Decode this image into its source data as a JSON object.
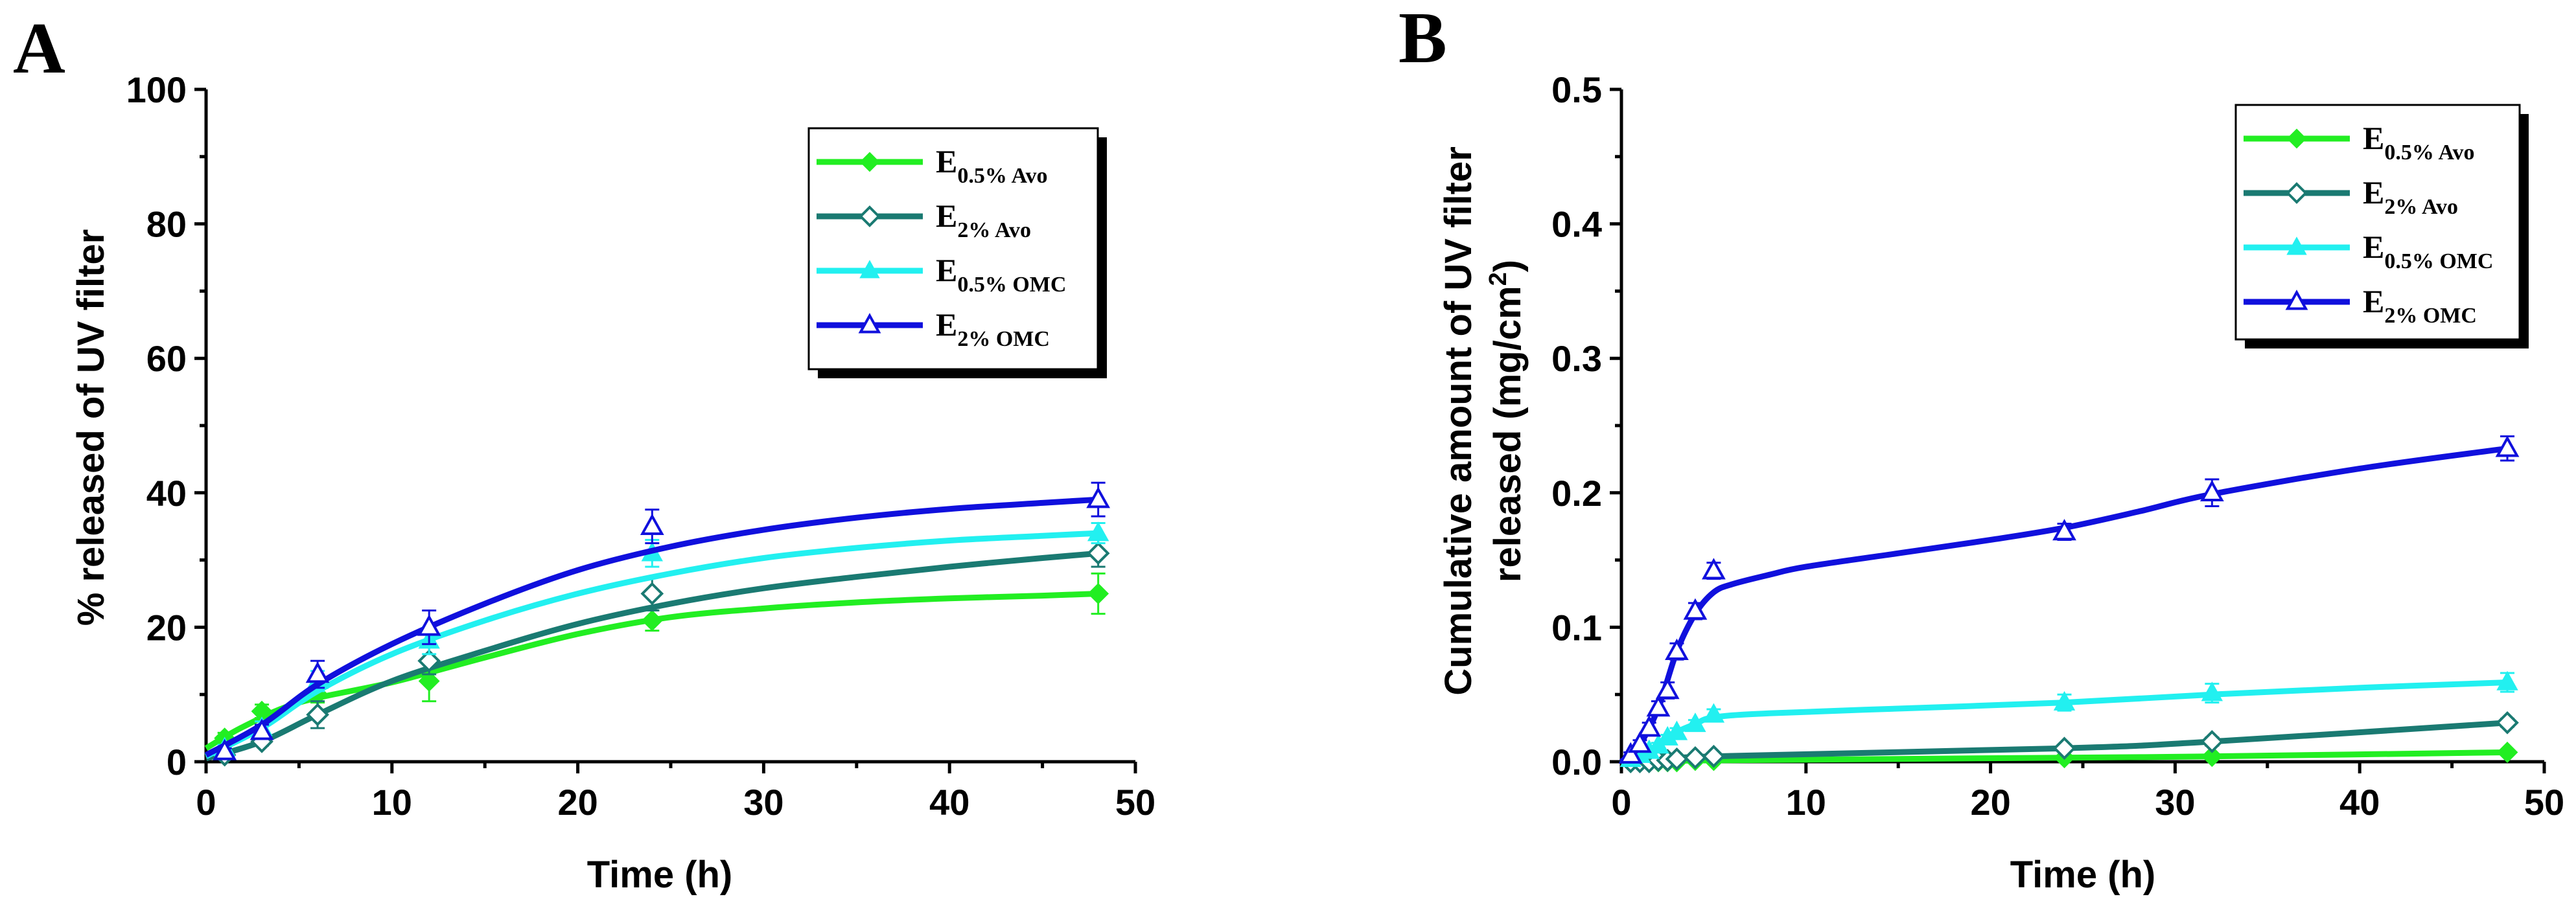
{
  "chart_data": [
    {
      "panel": "A",
      "type": "line",
      "xlabel": "Time (h)",
      "ylabel": "% released of UV filter",
      "xlim": [
        0,
        50
      ],
      "ylim": [
        0,
        100
      ],
      "xticks": [
        0,
        10,
        20,
        30,
        40,
        50
      ],
      "yticks": [
        0,
        20,
        40,
        60,
        80,
        100
      ],
      "xtick_labels": [
        "0",
        "10",
        "20",
        "30",
        "40",
        "50"
      ],
      "ytick_labels": [
        "0",
        "20",
        "40",
        "60",
        "80",
        "100"
      ],
      "legend_position": "top-right",
      "series": [
        {
          "name": "E",
          "sub": "0.5% Avo",
          "color": "#22ee22",
          "marker": "diamond-filled",
          "points": [
            {
              "x": 1,
              "y": 3.5,
              "err": 0.8
            },
            {
              "x": 3,
              "y": 7.5,
              "err": 1.0
            },
            {
              "x": 6,
              "y": 10.0,
              "err": 1.2
            },
            {
              "x": 12,
              "y": 12.0,
              "err": 3.0
            },
            {
              "x": 24,
              "y": 21.0,
              "err": 1.5
            },
            {
              "x": 48,
              "y": 25.0,
              "err": 3.0
            }
          ],
          "curve": [
            [
              0,
              2.0
            ],
            [
              2,
              5.2
            ],
            [
              5,
              8.8
            ],
            [
              10,
              11.8
            ],
            [
              15,
              15.5
            ],
            [
              20,
              19.0
            ],
            [
              25,
              21.5
            ],
            [
              30,
              22.8
            ],
            [
              35,
              23.7
            ],
            [
              40,
              24.3
            ],
            [
              45,
              24.7
            ],
            [
              48,
              25.0
            ]
          ]
        },
        {
          "name": "E",
          "sub": "2% Avo",
          "color": "#1a7a72",
          "marker": "diamond-open",
          "points": [
            {
              "x": 1,
              "y": 1.0,
              "err": 0.3
            },
            {
              "x": 3,
              "y": 3.0,
              "err": 0.6
            },
            {
              "x": 6,
              "y": 7.0,
              "err": 2.0
            },
            {
              "x": 12,
              "y": 15.0,
              "err": 2.0
            },
            {
              "x": 24,
              "y": 25.0,
              "err": 2.5
            },
            {
              "x": 48,
              "y": 31.0,
              "err": 2.0
            }
          ],
          "curve": [
            [
              0,
              0.5
            ],
            [
              3,
              3.0
            ],
            [
              6,
              7.0
            ],
            [
              10,
              12.0
            ],
            [
              15,
              16.5
            ],
            [
              20,
              20.5
            ],
            [
              25,
              23.5
            ],
            [
              30,
              25.8
            ],
            [
              35,
              27.5
            ],
            [
              40,
              29.0
            ],
            [
              45,
              30.3
            ],
            [
              48,
              31.0
            ]
          ]
        },
        {
          "name": "E",
          "sub": "0.5% OMC",
          "color": "#22f0f0",
          "marker": "triangle-filled",
          "points": [
            {
              "x": 1,
              "y": 2.0,
              "err": 0.5
            },
            {
              "x": 3,
              "y": 5.0,
              "err": 1.0
            },
            {
              "x": 6,
              "y": 12.0,
              "err": 1.5
            },
            {
              "x": 12,
              "y": 18.0,
              "err": 2.0
            },
            {
              "x": 24,
              "y": 31.0,
              "err": 2.0
            },
            {
              "x": 48,
              "y": 34.0,
              "err": 1.5
            }
          ],
          "curve": [
            [
              0,
              0.8
            ],
            [
              3,
              5.0
            ],
            [
              6,
              10.5
            ],
            [
              10,
              16.0
            ],
            [
              15,
              21.0
            ],
            [
              20,
              25.0
            ],
            [
              25,
              28.0
            ],
            [
              30,
              30.3
            ],
            [
              35,
              31.8
            ],
            [
              40,
              32.9
            ],
            [
              45,
              33.6
            ],
            [
              48,
              34.0
            ]
          ]
        },
        {
          "name": "E",
          "sub": "2% OMC",
          "color": "#1010dd",
          "marker": "triangle-open",
          "points": [
            {
              "x": 1,
              "y": 1.5,
              "err": 0.5
            },
            {
              "x": 3,
              "y": 4.5,
              "err": 1.0
            },
            {
              "x": 6,
              "y": 13.0,
              "err": 2.0
            },
            {
              "x": 12,
              "y": 20.0,
              "err": 2.5
            },
            {
              "x": 24,
              "y": 35.0,
              "err": 2.5
            },
            {
              "x": 48,
              "y": 39.0,
              "err": 2.5
            }
          ],
          "curve": [
            [
              0,
              1.0
            ],
            [
              3,
              5.5
            ],
            [
              6,
              11.5
            ],
            [
              10,
              17.5
            ],
            [
              15,
              23.5
            ],
            [
              20,
              28.5
            ],
            [
              25,
              32.0
            ],
            [
              30,
              34.5
            ],
            [
              35,
              36.3
            ],
            [
              40,
              37.6
            ],
            [
              45,
              38.5
            ],
            [
              48,
              39.0
            ]
          ]
        }
      ]
    },
    {
      "panel": "B",
      "type": "line",
      "xlabel": "Time (h)",
      "ylabel_line1": "Cumulative amount of UV filter",
      "ylabel_line2": "released (mg/cm",
      "ylabel_sup": "2",
      "ylabel_end": ")",
      "xlim": [
        0,
        50
      ],
      "ylim": [
        0,
        0.5
      ],
      "xticks": [
        0,
        10,
        20,
        30,
        40,
        50
      ],
      "yticks": [
        0,
        0.1,
        0.2,
        0.3,
        0.4,
        0.5
      ],
      "xtick_labels": [
        "0",
        "10",
        "20",
        "30",
        "40",
        "50"
      ],
      "ytick_labels": [
        "0.0",
        "0.1",
        "0.2",
        "0.3",
        "0.4",
        "0.5"
      ],
      "legend_position": "top-right",
      "series": [
        {
          "name": "E",
          "sub": "0.5% Avo",
          "color": "#22ee22",
          "marker": "diamond-filled",
          "points": [
            {
              "x": 0.5,
              "y": 0.0,
              "err": 0
            },
            {
              "x": 1,
              "y": 0.0,
              "err": 0
            },
            {
              "x": 1.5,
              "y": 0.0,
              "err": 0
            },
            {
              "x": 2,
              "y": 0.0,
              "err": 0
            },
            {
              "x": 2.5,
              "y": 0.0,
              "err": 0
            },
            {
              "x": 3,
              "y": 0.0,
              "err": 0
            },
            {
              "x": 4,
              "y": 0.001,
              "err": 0
            },
            {
              "x": 5,
              "y": 0.001,
              "err": 0
            },
            {
              "x": 24,
              "y": 0.003,
              "err": 0
            },
            {
              "x": 32,
              "y": 0.004,
              "err": 0
            },
            {
              "x": 48,
              "y": 0.007,
              "err": 0.002
            }
          ],
          "curve": [
            [
              0,
              0.0
            ],
            [
              5,
              0.001
            ],
            [
              24,
              0.003
            ],
            [
              32,
              0.004
            ],
            [
              48,
              0.007
            ]
          ]
        },
        {
          "name": "E",
          "sub": "2% Avo",
          "color": "#1a7a72",
          "marker": "diamond-open",
          "points": [
            {
              "x": 0.5,
              "y": 0.0,
              "err": 0
            },
            {
              "x": 1,
              "y": 0.0,
              "err": 0
            },
            {
              "x": 1.5,
              "y": 0.0,
              "err": 0
            },
            {
              "x": 2,
              "y": 0.001,
              "err": 0
            },
            {
              "x": 2.5,
              "y": 0.001,
              "err": 0
            },
            {
              "x": 3,
              "y": 0.002,
              "err": 0
            },
            {
              "x": 4,
              "y": 0.003,
              "err": 0
            },
            {
              "x": 5,
              "y": 0.004,
              "err": 0
            },
            {
              "x": 24,
              "y": 0.01,
              "err": 0.002
            },
            {
              "x": 32,
              "y": 0.015,
              "err": 0.003
            },
            {
              "x": 48,
              "y": 0.029,
              "err": 0.003
            }
          ],
          "curve": [
            [
              0,
              0.0
            ],
            [
              5,
              0.004
            ],
            [
              24,
              0.01
            ],
            [
              32,
              0.015
            ],
            [
              48,
              0.029
            ]
          ]
        },
        {
          "name": "E",
          "sub": "0.5% OMC",
          "color": "#22f0f0",
          "marker": "triangle-filled",
          "points": [
            {
              "x": 0.5,
              "y": 0.002,
              "err": 0.001
            },
            {
              "x": 1,
              "y": 0.005,
              "err": 0.001
            },
            {
              "x": 1.5,
              "y": 0.008,
              "err": 0.002
            },
            {
              "x": 2,
              "y": 0.012,
              "err": 0.002
            },
            {
              "x": 2.5,
              "y": 0.018,
              "err": 0.002
            },
            {
              "x": 3,
              "y": 0.022,
              "err": 0.003
            },
            {
              "x": 4,
              "y": 0.028,
              "err": 0.003
            },
            {
              "x": 5,
              "y": 0.035,
              "err": 0.004
            },
            {
              "x": 24,
              "y": 0.044,
              "err": 0.006
            },
            {
              "x": 32,
              "y": 0.051,
              "err": 0.007
            },
            {
              "x": 48,
              "y": 0.059,
              "err": 0.007
            }
          ],
          "curve": [
            [
              0,
              0.0
            ],
            [
              1,
              0.005
            ],
            [
              2,
              0.012
            ],
            [
              3,
              0.022
            ],
            [
              4,
              0.028
            ],
            [
              5,
              0.033
            ],
            [
              8,
              0.036
            ],
            [
              16,
              0.04
            ],
            [
              24,
              0.044
            ],
            [
              32,
              0.05
            ],
            [
              40,
              0.055
            ],
            [
              48,
              0.059
            ]
          ]
        },
        {
          "name": "E",
          "sub": "2% OMC",
          "color": "#1010dd",
          "marker": "triangle-open",
          "points": [
            {
              "x": 0.5,
              "y": 0.005,
              "err": 0.002
            },
            {
              "x": 1,
              "y": 0.013,
              "err": 0.003
            },
            {
              "x": 1.5,
              "y": 0.025,
              "err": 0.004
            },
            {
              "x": 2,
              "y": 0.04,
              "err": 0.005
            },
            {
              "x": 2.5,
              "y": 0.053,
              "err": 0.006
            },
            {
              "x": 3,
              "y": 0.082,
              "err": 0.006
            },
            {
              "x": 4,
              "y": 0.112,
              "err": 0.006
            },
            {
              "x": 5,
              "y": 0.142,
              "err": 0.006
            },
            {
              "x": 24,
              "y": 0.171,
              "err": 0.006
            },
            {
              "x": 32,
              "y": 0.2,
              "err": 0.01
            },
            {
              "x": 48,
              "y": 0.233,
              "err": 0.009
            }
          ],
          "curve": [
            [
              0,
              0.0
            ],
            [
              1,
              0.013
            ],
            [
              2,
              0.04
            ],
            [
              3,
              0.082
            ],
            [
              4,
              0.11
            ],
            [
              5,
              0.126
            ],
            [
              6,
              0.132
            ],
            [
              8,
              0.139
            ],
            [
              10,
              0.145
            ],
            [
              15,
              0.155
            ],
            [
              20,
              0.165
            ],
            [
              24,
              0.174
            ],
            [
              28,
              0.186
            ],
            [
              32,
              0.199
            ],
            [
              40,
              0.218
            ],
            [
              48,
              0.233
            ]
          ]
        }
      ]
    }
  ]
}
